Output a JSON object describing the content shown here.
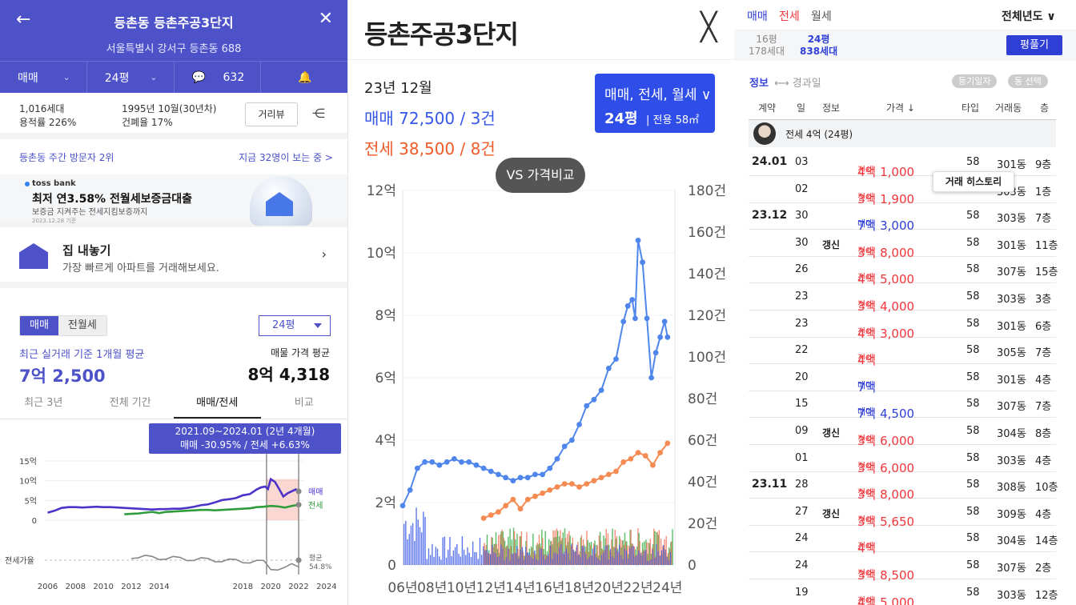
{
  "left": {
    "header": {
      "title": "등촌동 등촌주공3단지",
      "address": "서울특별시 강서구 등촌동 688",
      "trade_select": "매매",
      "size_select": "24평",
      "comment_count": "632"
    },
    "info": {
      "households": "1,016세대",
      "floor_area_ratio": "용적률 226%",
      "built": "1995년 10월(30년차)",
      "coverage": "건폐율 17%",
      "street_view_button": "거리뷰"
    },
    "visitors": {
      "rank": "등촌동 주간 방문자 2위",
      "viewing_now": "지금 32명이 보는 중 >"
    },
    "ad": {
      "brand": "toss bank",
      "headline": "최저 연3.58% 전월세보증금대출",
      "sub": "보증금 지켜주는 전세지킴보증까지",
      "date": "2023.12.28 기준"
    },
    "sell": {
      "title": "집 내놓기",
      "subtitle": "가장 빠르게 아파트를 거래해보세요."
    },
    "segment": [
      "매매",
      "전월세"
    ],
    "size_dropdown": "24평",
    "average": {
      "label": "최근 실거래 기준 1개월 평균",
      "value": "7억 2,500",
      "listing_label": "매물 가격 평균",
      "listing_value": "8억 4,318"
    },
    "period_tabs": [
      "최근 3년",
      "전체 기간",
      "매매/전세",
      "비교"
    ],
    "tooltip": {
      "range": "2021.09~2024.01 (2년 4개월)",
      "change": "매매 -30.95%  /  전세 +6.63%"
    },
    "mini_chart": {
      "y_ticks": [
        "15억",
        "10억",
        "5억",
        "0"
      ],
      "x_ticks": [
        "2006",
        "2008",
        "2010",
        "2012",
        "2014",
        "2018",
        "2020",
        "2022",
        "2024"
      ],
      "series_labels": [
        "매매",
        "전세"
      ],
      "ratio_label": "전세가율",
      "ratio_tag": "평균",
      "ratio_value": "54.8%",
      "colors": {
        "sale": "#4b33c9",
        "rent": "#2e9c3a",
        "ratio": "#888888",
        "highlight": "#f4a79a"
      }
    }
  },
  "middle": {
    "title": "등촌주공3단지",
    "month": "23년 12월",
    "sale_summary": "매매 72,500 / 3건",
    "rent_summary": "전세 38,500 / 8건",
    "badge_types": "매매, 전세, 월세 ∨",
    "badge_size": "24평",
    "badge_area": "| 전용 58㎡",
    "compare_button": "VS 가격비교",
    "chart_data": {
      "type": "line",
      "x_ticks": [
        "06년",
        "08년",
        "10년",
        "12년",
        "14년",
        "16년",
        "18년",
        "20년",
        "22년",
        "24년"
      ],
      "y_left_ticks": [
        "0",
        "2억",
        "4억",
        "6억",
        "8억",
        "10억",
        "12억"
      ],
      "y_right_ticks": [
        "0",
        "20건",
        "40건",
        "60건",
        "80건",
        "100건",
        "120건",
        "140건",
        "160건",
        "180건"
      ],
      "ylim_left": [
        0,
        12
      ],
      "ylim_right": [
        0,
        180
      ],
      "series": [
        {
          "name": "매매",
          "color": "#4f86ec",
          "x": [
            2006.0,
            2006.5,
            2007.0,
            2007.5,
            2008.0,
            2008.5,
            2009.0,
            2009.5,
            2010.0,
            2010.5,
            2011.0,
            2011.5,
            2012.0,
            2012.5,
            2013.0,
            2013.5,
            2014.0,
            2014.5,
            2015.0,
            2015.5,
            2016.0,
            2016.5,
            2017.0,
            2017.5,
            2018.0,
            2018.5,
            2019.0,
            2019.5,
            2020.0,
            2020.5,
            2021.0,
            2021.3,
            2021.6,
            2021.8,
            2022.0,
            2022.3,
            2022.6,
            2022.9,
            2023.2,
            2023.5,
            2023.8,
            2024.0
          ],
          "values": [
            1.9,
            2.4,
            3.1,
            3.3,
            3.3,
            3.2,
            3.3,
            3.4,
            3.3,
            3.3,
            3.2,
            3.1,
            3.0,
            2.9,
            2.8,
            2.7,
            2.8,
            2.8,
            2.9,
            2.9,
            3.1,
            3.4,
            3.8,
            4.0,
            4.5,
            5.1,
            5.3,
            5.6,
            6.3,
            6.6,
            7.8,
            8.3,
            8.5,
            7.9,
            10.4,
            9.7,
            7.9,
            6.0,
            6.8,
            7.3,
            7.8,
            7.3
          ]
        },
        {
          "name": "전세",
          "color": "#f58b52",
          "x": [
            2011.5,
            2012.0,
            2012.5,
            2013.0,
            2013.5,
            2014.0,
            2014.5,
            2015.0,
            2015.5,
            2016.0,
            2016.5,
            2017.0,
            2017.5,
            2018.0,
            2018.5,
            2019.0,
            2019.5,
            2020.0,
            2020.5,
            2021.0,
            2021.5,
            2022.0,
            2022.5,
            2023.0,
            2023.5,
            2024.0
          ],
          "values": [
            1.5,
            1.6,
            1.7,
            1.9,
            2.1,
            1.8,
            2.1,
            2.2,
            2.3,
            2.4,
            2.5,
            2.6,
            2.6,
            2.5,
            2.6,
            2.7,
            2.8,
            2.9,
            3.0,
            3.3,
            3.4,
            3.6,
            3.5,
            3.2,
            3.6,
            3.9
          ]
        }
      ],
      "volume_series": [
        {
          "name": "매매 거래량",
          "color": "#3f5ee6"
        },
        {
          "name": "전세 거래량",
          "color": "#f27a62"
        },
        {
          "name": "월세 거래량",
          "color": "#3bb04c"
        }
      ]
    }
  },
  "right": {
    "tabs": [
      "매매",
      "전세",
      "월세"
    ],
    "year_select": "전체년도 ∨",
    "summary": {
      "size_gray": "16평",
      "households_gray": "178세대",
      "size_blue": "24평",
      "households_blue": "838세대",
      "action_button": "평풀기"
    },
    "filter": {
      "info": "정보",
      "arrow": "⟷ 경과일",
      "pill1": "등기일자",
      "pill2": "동 선택"
    },
    "columns": [
      "계약",
      "일",
      "정보",
      "가격 ↓",
      "타입",
      "거래동",
      "층"
    ],
    "filter_row": "전세 4억 (24평)",
    "history_popup": "거래 히스토리",
    "rows": [
      {
        "month": "24.01",
        "day": "03",
        "info": "",
        "kind": "전세",
        "price": "4억 1,000",
        "type": "58",
        "dong": "301동",
        "floor": "9층"
      },
      {
        "month": "",
        "day": "02",
        "info": "",
        "kind": "전세",
        "price": "3억 1,900",
        "type": "58",
        "dong": "303동",
        "floor": "1층"
      },
      {
        "month": "23.12",
        "day": "30",
        "info": "",
        "kind": "매매",
        "price": "7억 3,000",
        "type": "58",
        "dong": "303동",
        "floor": "7층"
      },
      {
        "month": "",
        "day": "30",
        "info": "갱신",
        "kind": "전세",
        "price": "3억 8,000",
        "type": "58",
        "dong": "301동",
        "floor": "11층"
      },
      {
        "month": "",
        "day": "26",
        "info": "",
        "kind": "전세",
        "price": "4억 5,000",
        "type": "58",
        "dong": "307동",
        "floor": "15층"
      },
      {
        "month": "",
        "day": "23",
        "info": "",
        "kind": "전세",
        "price": "3억 4,000",
        "type": "58",
        "dong": "303동",
        "floor": "3층"
      },
      {
        "month": "",
        "day": "23",
        "info": "",
        "kind": "전세",
        "price": "4억 3,000",
        "type": "58",
        "dong": "301동",
        "floor": "6층"
      },
      {
        "month": "",
        "day": "22",
        "info": "",
        "kind": "전세",
        "price": "4억",
        "type": "58",
        "dong": "305동",
        "floor": "7층"
      },
      {
        "month": "",
        "day": "20",
        "info": "",
        "kind": "매매",
        "price": "7억",
        "type": "58",
        "dong": "301동",
        "floor": "4층"
      },
      {
        "month": "",
        "day": "15",
        "info": "",
        "kind": "매매",
        "price": "7억 4,500",
        "type": "58",
        "dong": "307동",
        "floor": "7층"
      },
      {
        "month": "",
        "day": "09",
        "info": "갱신",
        "kind": "전세",
        "price": "3억 6,000",
        "type": "58",
        "dong": "304동",
        "floor": "8층"
      },
      {
        "month": "",
        "day": "01",
        "info": "",
        "kind": "전세",
        "price": "3억 6,000",
        "type": "58",
        "dong": "303동",
        "floor": "4층"
      },
      {
        "month": "23.11",
        "day": "28",
        "info": "",
        "kind": "전세",
        "price": "3억 8,000",
        "type": "58",
        "dong": "308동",
        "floor": "10층"
      },
      {
        "month": "",
        "day": "27",
        "info": "갱신",
        "kind": "전세",
        "price": "3억 5,650",
        "type": "58",
        "dong": "309동",
        "floor": "4층"
      },
      {
        "month": "",
        "day": "24",
        "info": "",
        "kind": "전세",
        "price": "4억",
        "type": "58",
        "dong": "304동",
        "floor": "14층"
      },
      {
        "month": "",
        "day": "24",
        "info": "",
        "kind": "전세",
        "price": "3억 8,500",
        "type": "58",
        "dong": "307동",
        "floor": "2층"
      },
      {
        "month": "",
        "day": "19",
        "info": "",
        "kind": "전세",
        "price": "4억 5,000",
        "type": "58",
        "dong": "303동",
        "floor": "12층"
      }
    ]
  }
}
